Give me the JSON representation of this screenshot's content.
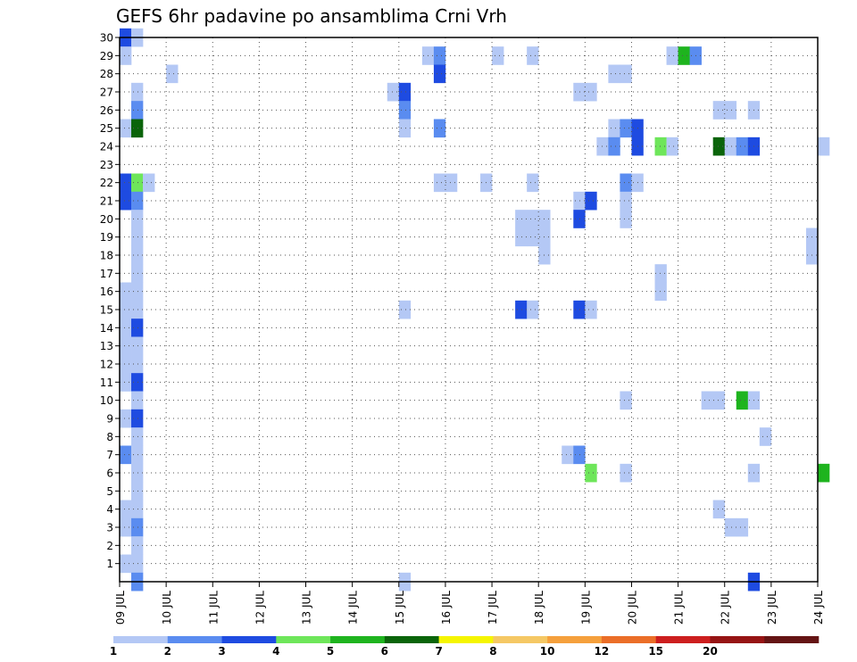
{
  "chart_data": {
    "type": "heatmap",
    "title": "GEFS 6hr padavine po ansamblima Crni Vrh",
    "xlabel": "",
    "ylabel": "",
    "x_ticks": [
      "09 JUL",
      "10 JUL",
      "11 JUL",
      "12 JUL",
      "13 JUL",
      "14 JUL",
      "15 JUL",
      "16 JUL",
      "17 JUL",
      "18 JUL",
      "19 JUL",
      "20 JUL",
      "21 JUL",
      "22 JUL",
      "23 JUL",
      "24 JUL"
    ],
    "y_ticks": [
      "1",
      "2",
      "3",
      "4",
      "5",
      "6",
      "7",
      "8",
      "9",
      "10",
      "11",
      "12",
      "13",
      "14",
      "15",
      "16",
      "17",
      "18",
      "19",
      "20",
      "21",
      "22",
      "23",
      "24",
      "25",
      "26",
      "27",
      "28",
      "29",
      "30"
    ],
    "x_range": [
      "09 JUL 00Z",
      "24 JUL 00Z"
    ],
    "y_range": [
      0,
      30
    ],
    "x_step_hours": 6,
    "grid": true,
    "colorbar": {
      "labels": [
        "1",
        "2",
        "3",
        "4",
        "5",
        "6",
        "7",
        "8",
        "10",
        "12",
        "15",
        "20"
      ],
      "colors": [
        "#b4c8f5",
        "#5a8cf0",
        "#1e4be1",
        "#6ee65a",
        "#1eb41e",
        "#0a640a",
        "#f5f500",
        "#f5c864",
        "#f5a03c",
        "#eb6e28",
        "#cd1e1e",
        "#961414",
        "#641414"
      ]
    },
    "cells_legend": "each cell = [x_step_index (0 = 09 JUL 00Z, 6h steps), member (y), colour level 1-12]",
    "cells": [
      [
        0,
        30,
        3
      ],
      [
        1,
        30,
        1
      ],
      [
        0,
        29,
        1
      ],
      [
        26,
        29,
        1
      ],
      [
        27,
        29,
        2
      ],
      [
        32,
        29,
        1
      ],
      [
        35,
        29,
        1
      ],
      [
        47,
        29,
        1
      ],
      [
        48,
        29,
        5
      ],
      [
        49,
        29,
        2
      ],
      [
        4,
        28,
        1
      ],
      [
        27,
        28,
        3
      ],
      [
        42,
        28,
        1
      ],
      [
        43,
        28,
        1
      ],
      [
        1,
        27,
        1
      ],
      [
        23,
        27,
        1
      ],
      [
        24,
        27,
        3
      ],
      [
        39,
        27,
        1
      ],
      [
        40,
        27,
        1
      ],
      [
        1,
        26,
        2
      ],
      [
        24,
        26,
        2
      ],
      [
        51,
        26,
        1
      ],
      [
        52,
        26,
        1
      ],
      [
        54,
        26,
        1
      ],
      [
        0,
        25,
        1
      ],
      [
        1,
        25,
        6
      ],
      [
        24,
        25,
        1
      ],
      [
        27,
        25,
        2
      ],
      [
        42,
        25,
        1
      ],
      [
        43,
        25,
        2
      ],
      [
        44,
        25,
        3
      ],
      [
        41,
        24,
        1
      ],
      [
        42,
        24,
        2
      ],
      [
        44,
        24,
        3
      ],
      [
        46,
        24,
        4
      ],
      [
        47,
        24,
        1
      ],
      [
        51,
        24,
        6
      ],
      [
        52,
        24,
        1
      ],
      [
        53,
        24,
        2
      ],
      [
        54,
        24,
        3
      ],
      [
        60,
        24,
        1
      ],
      [
        0,
        22,
        3
      ],
      [
        1,
        22,
        4
      ],
      [
        2,
        22,
        1
      ],
      [
        27,
        22,
        1
      ],
      [
        28,
        22,
        1
      ],
      [
        31,
        22,
        1
      ],
      [
        35,
        22,
        1
      ],
      [
        43,
        22,
        2
      ],
      [
        44,
        22,
        1
      ],
      [
        0,
        21,
        3
      ],
      [
        1,
        21,
        2
      ],
      [
        39,
        21,
        1
      ],
      [
        40,
        21,
        3
      ],
      [
        43,
        21,
        1
      ],
      [
        1,
        20,
        1
      ],
      [
        34,
        20,
        1
      ],
      [
        35,
        20,
        1
      ],
      [
        36,
        20,
        1
      ],
      [
        39,
        20,
        3
      ],
      [
        43,
        20,
        1
      ],
      [
        1,
        19,
        1
      ],
      [
        34,
        19,
        1
      ],
      [
        35,
        19,
        1
      ],
      [
        36,
        19,
        1
      ],
      [
        59,
        19,
        1
      ],
      [
        1,
        18,
        1
      ],
      [
        36,
        18,
        1
      ],
      [
        59,
        18,
        1
      ],
      [
        1,
        17,
        1
      ],
      [
        46,
        17,
        1
      ],
      [
        0,
        16,
        1
      ],
      [
        1,
        16,
        1
      ],
      [
        46,
        16,
        1
      ],
      [
        0,
        15,
        1
      ],
      [
        1,
        15,
        1
      ],
      [
        24,
        15,
        1
      ],
      [
        34,
        15,
        3
      ],
      [
        35,
        15,
        1
      ],
      [
        39,
        15,
        3
      ],
      [
        40,
        15,
        1
      ],
      [
        0,
        14,
        1
      ],
      [
        1,
        14,
        3
      ],
      [
        0,
        13,
        1
      ],
      [
        1,
        13,
        1
      ],
      [
        0,
        12,
        1
      ],
      [
        1,
        12,
        1
      ],
      [
        0,
        11,
        1
      ],
      [
        1,
        11,
        3
      ],
      [
        1,
        10,
        1
      ],
      [
        43,
        10,
        1
      ],
      [
        50,
        10,
        1
      ],
      [
        51,
        10,
        1
      ],
      [
        53,
        10,
        5
      ],
      [
        54,
        10,
        1
      ],
      [
        0,
        9,
        1
      ],
      [
        1,
        9,
        3
      ],
      [
        1,
        8,
        1
      ],
      [
        55,
        8,
        1
      ],
      [
        0,
        7,
        2
      ],
      [
        1,
        7,
        1
      ],
      [
        38,
        7,
        1
      ],
      [
        39,
        7,
        2
      ],
      [
        1,
        6,
        1
      ],
      [
        40,
        6,
        4
      ],
      [
        43,
        6,
        1
      ],
      [
        54,
        6,
        1
      ],
      [
        60,
        6,
        5
      ],
      [
        1,
        5,
        1
      ],
      [
        0,
        4,
        1
      ],
      [
        1,
        4,
        1
      ],
      [
        51,
        4,
        1
      ],
      [
        0,
        3,
        1
      ],
      [
        1,
        3,
        2
      ],
      [
        52,
        3,
        1
      ],
      [
        53,
        3,
        1
      ],
      [
        1,
        2,
        1
      ],
      [
        0,
        1,
        1
      ],
      [
        1,
        1,
        1
      ],
      [
        1,
        0,
        2
      ],
      [
        24,
        0,
        1
      ],
      [
        54,
        0,
        3
      ]
    ]
  }
}
